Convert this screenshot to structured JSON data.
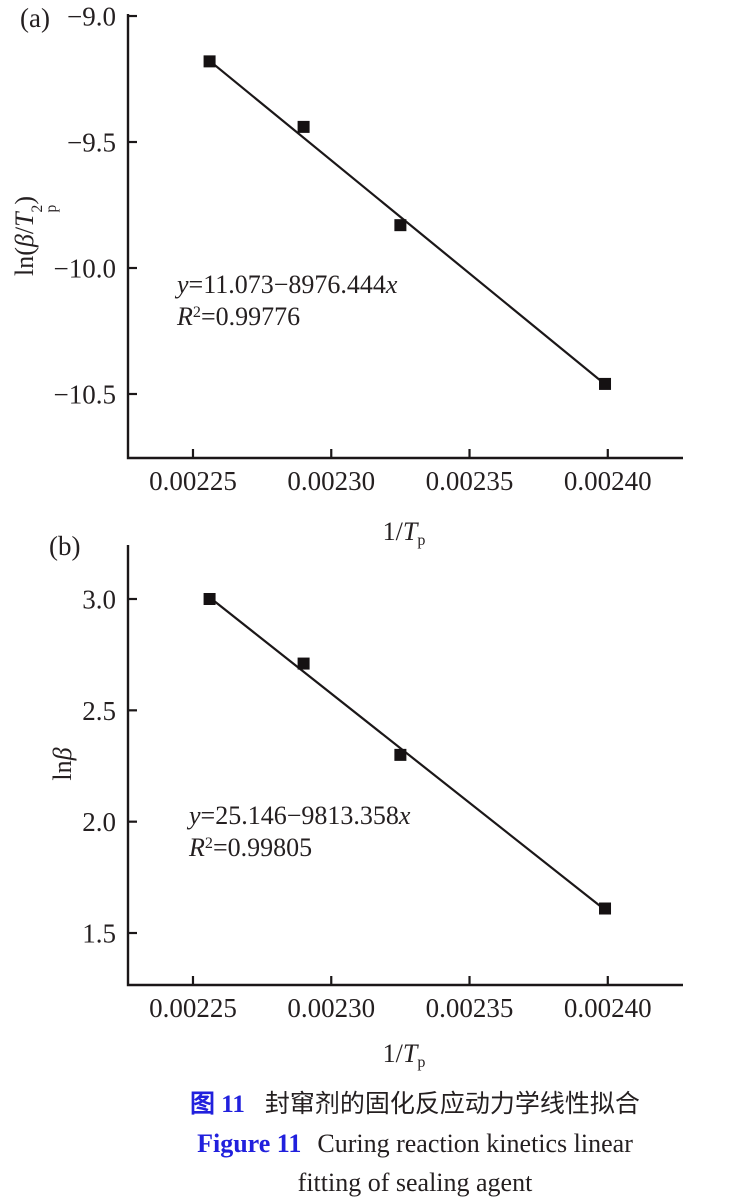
{
  "colors": {
    "text": "#241f20",
    "line": "#1b1718",
    "marker": "#151112",
    "accent_blue": "#2120dd",
    "background": "#ffffff"
  },
  "symbols": {
    "ln_open": "ln(",
    "beta": "β",
    "slash": "/",
    "T": "T",
    "sub_p": "p",
    "sup_2": "2",
    "paren_close": ")",
    "ln": "ln",
    "one_over": "1/"
  },
  "chart_data": [
    {
      "id": "a",
      "type": "scatter",
      "panel_label": "(a)",
      "x_label_text": "1/Tp",
      "y_label_text": "ln(β/Tp²)",
      "points": {
        "x": [
          0.002256,
          0.00229,
          0.002325,
          0.002399
        ],
        "y": [
          -9.18,
          -9.44,
          -9.83,
          -10.46
        ]
      },
      "fit": {
        "label": "y=11.073−8976.444x",
        "intercept": 11.073,
        "slope": -8976.444,
        "x_start": 0.002256,
        "x_end": 0.002399,
        "r_squared": 0.99776,
        "r_squared_label": "R²=0.99776",
        "parts": {
          "var_y": "y",
          "body": "=11.073−8976.444",
          "var_x": "x"
        },
        "r2_parts": {
          "var_R": "R",
          "sup": "2",
          "body": "=0.99776"
        }
      },
      "xlim": [
        0.0022265,
        0.0024272
      ],
      "ylim": [
        -10.754,
        -8.992
      ],
      "xticks": {
        "values": [
          0.00225,
          0.0023,
          0.00235,
          0.0024
        ],
        "labels": [
          "0.00225",
          "0.00230",
          "0.00235",
          "0.00240"
        ]
      },
      "yticks": {
        "values": [
          -9.0,
          -9.5,
          -10.0,
          -10.5
        ],
        "labels": [
          "−9.0",
          "−9.5",
          "−10.0",
          "−10.5"
        ]
      },
      "marker": "square",
      "marker_size": 12,
      "grid": false,
      "legend": "none"
    },
    {
      "id": "b",
      "type": "scatter",
      "panel_label": "(b)",
      "x_label_text": "1/Tp",
      "y_label_text": "lnβ",
      "points": {
        "x": [
          0.002256,
          0.00229,
          0.002325,
          0.002399
        ],
        "y": [
          3.0,
          2.71,
          2.3,
          1.61
        ]
      },
      "fit": {
        "label": "y=25.146−9813.358x",
        "intercept": 25.146,
        "slope": -9813.358,
        "x_start": 0.002256,
        "x_end": 0.002399,
        "r_squared": 0.99805,
        "r_squared_label": "R²=0.99805",
        "parts": {
          "var_y": "y",
          "body": "=25.146−9813.358",
          "var_x": "x"
        },
        "r2_parts": {
          "var_R": "R",
          "sup": "2",
          "body": "=0.99805"
        }
      },
      "xlim": [
        0.0022265,
        0.0024272
      ],
      "ylim": [
        1.2665,
        3.2425
      ],
      "xticks": {
        "values": [
          0.00225,
          0.0023,
          0.00235,
          0.0024
        ],
        "labels": [
          "0.00225",
          "0.00230",
          "0.00235",
          "0.00240"
        ]
      },
      "yticks": {
        "values": [
          3.0,
          2.5,
          2.0,
          1.5
        ],
        "labels": [
          "3.0",
          "2.5",
          "2.0",
          "1.5"
        ]
      },
      "marker": "square",
      "marker_size": 12,
      "grid": false,
      "legend": "none"
    }
  ],
  "caption": {
    "zh_label": "图 11",
    "zh_text": "封窜剂的固化反应动力学线性拟合",
    "en_label": "Figure 11",
    "en_line1": "Curing reaction kinetics linear",
    "en_line2": "fitting of sealing agent"
  }
}
